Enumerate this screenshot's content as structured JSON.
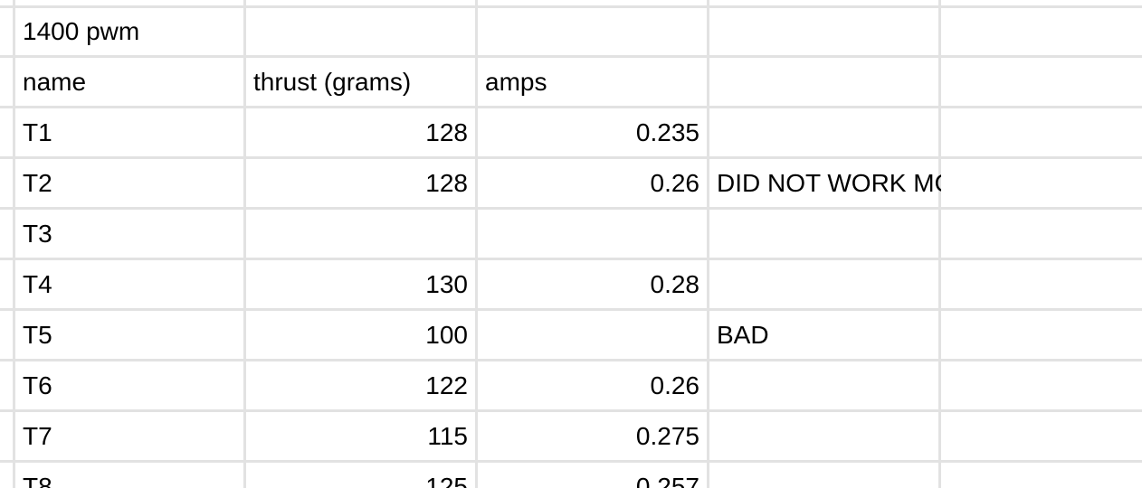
{
  "sheet": {
    "title_cell": "1400 pwm",
    "headers": [
      "name",
      "thrust (grams)",
      "amps"
    ],
    "rows": [
      {
        "name": "T1",
        "thrust": "128",
        "amps": "0.235",
        "note": ""
      },
      {
        "name": "T2",
        "thrust": "128",
        "amps": "0.26",
        "note": "DID NOT WORK MOST TIMES."
      },
      {
        "name": "T3",
        "thrust": "",
        "amps": "",
        "note": ""
      },
      {
        "name": "T4",
        "thrust": "130",
        "amps": "0.28",
        "note": ""
      },
      {
        "name": "T5",
        "thrust": "100",
        "amps": "",
        "note": "BAD"
      },
      {
        "name": "T6",
        "thrust": "122",
        "amps": "0.26",
        "note": ""
      },
      {
        "name": "T7",
        "thrust": "115",
        "amps": "0.275",
        "note": ""
      },
      {
        "name": "T8",
        "thrust": "125",
        "amps": "0.257",
        "note": ""
      }
    ],
    "colors": {
      "gridline": "#e2e2e2",
      "cell_background": "#ffffff",
      "text": "#000000"
    }
  }
}
